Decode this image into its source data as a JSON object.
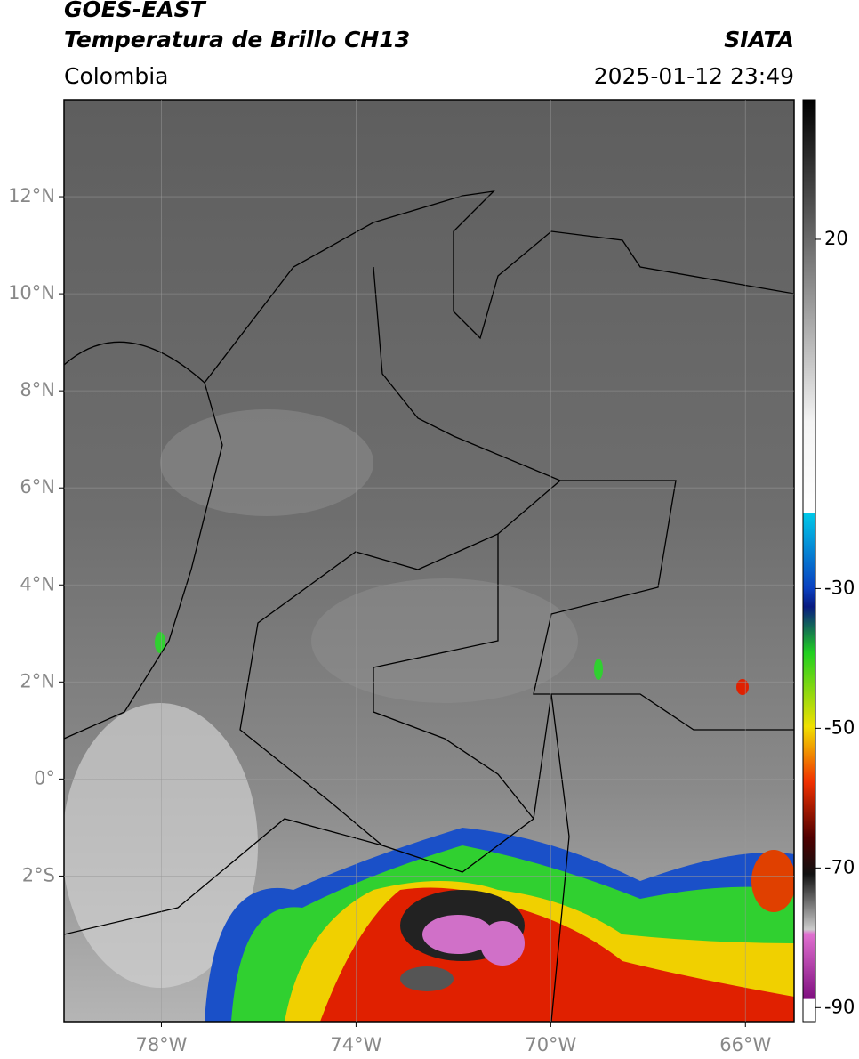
{
  "header": {
    "title": "GOES-EAST",
    "subtitle": "Temperatura de Brillo CH13",
    "source": "SIATA",
    "region": "Colombia",
    "datetime": "2025-01-12 23:49"
  },
  "map": {
    "xlim": [
      -80,
      -65
    ],
    "ylim": [
      -5,
      14
    ],
    "grid": true,
    "xticks": [
      {
        "value": -78,
        "label": "78°W"
      },
      {
        "value": -74,
        "label": "74°W"
      },
      {
        "value": -70,
        "label": "70°W"
      },
      {
        "value": -66,
        "label": "66°W"
      }
    ],
    "yticks": [
      {
        "value": 12,
        "label": "12°N"
      },
      {
        "value": 10,
        "label": "10°N"
      },
      {
        "value": 8,
        "label": "8°N"
      },
      {
        "value": 6,
        "label": "6°N"
      },
      {
        "value": 4,
        "label": "4°N"
      },
      {
        "value": 2,
        "label": "2°N"
      },
      {
        "value": 0,
        "label": "0°"
      },
      {
        "value": -2,
        "label": "2°S"
      }
    ]
  },
  "colorbar": {
    "lim": [
      -92,
      40
    ],
    "ticks": [
      20,
      -30,
      -50,
      -70,
      -90
    ]
  }
}
